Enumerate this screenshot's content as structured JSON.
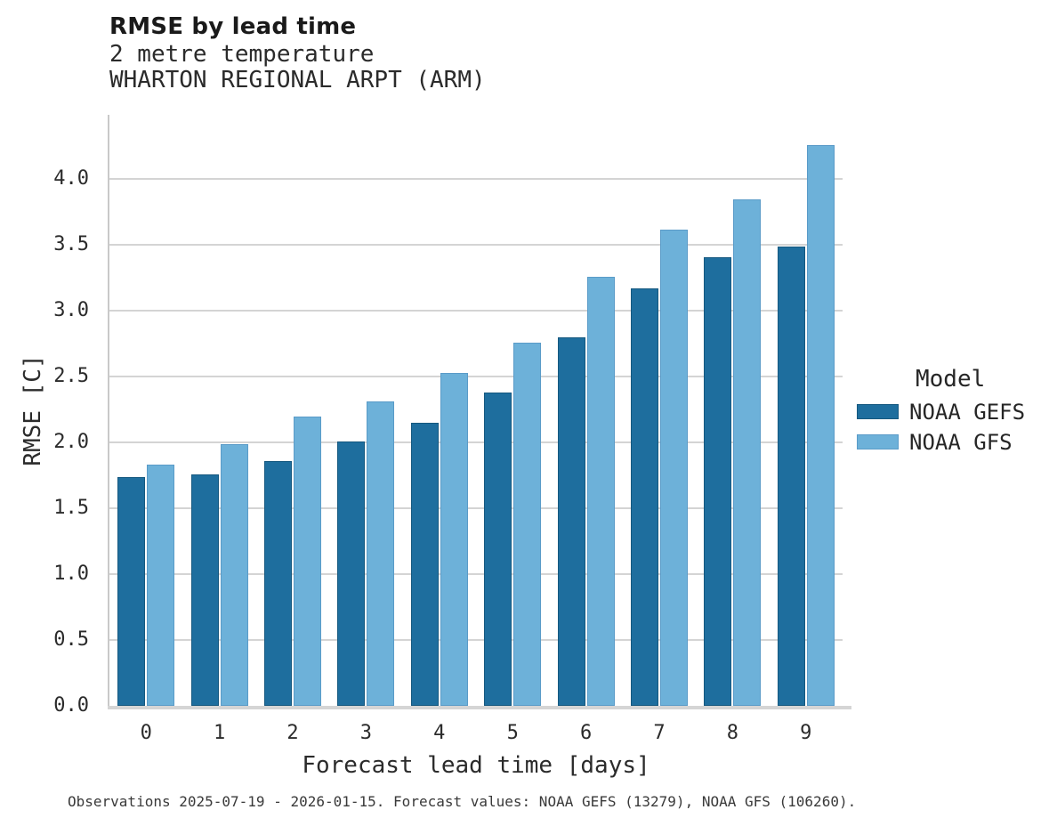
{
  "header": {
    "title": "RMSE by lead time",
    "subtitle_variable": "2 metre temperature",
    "subtitle_station": "WHARTON REGIONAL ARPT (ARM)"
  },
  "chart_data": {
    "type": "bar",
    "title": "RMSE by lead time",
    "subtitle": [
      "2 metre temperature",
      "WHARTON REGIONAL ARPT (ARM)"
    ],
    "categories": [
      "0",
      "1",
      "2",
      "3",
      "4",
      "5",
      "6",
      "7",
      "8",
      "9"
    ],
    "series": [
      {
        "name": "NOAA GEFS",
        "color": "#1e6e9e",
        "edge_color": "#15587f",
        "values": [
          1.74,
          1.76,
          1.86,
          2.01,
          2.15,
          2.38,
          2.8,
          3.17,
          3.41,
          3.49
        ]
      },
      {
        "name": "NOAA GFS",
        "color": "#6db1d9",
        "edge_color": "#5a9bc8",
        "values": [
          1.83,
          1.99,
          2.2,
          2.31,
          2.53,
          2.76,
          3.26,
          3.62,
          3.85,
          4.26
        ]
      }
    ],
    "xlabel": "Forecast lead time [days]",
    "ylabel": "RMSE [C]",
    "ylim": [
      0,
      4.49
    ],
    "yticks": [
      0,
      0.5,
      1,
      1.5,
      2,
      2.5,
      3,
      3.5,
      4
    ],
    "ytick_decimals": 1,
    "grid": true,
    "legend_title": "Model",
    "legend_position": "right-outside"
  },
  "footer": {
    "note": "Observations 2025-07-19 - 2026-01-15. Forecast values: NOAA GEFS (13279), NOAA GFS (106260)."
  },
  "colors": {
    "background": "#ffffff",
    "grid": "#d4d4d4",
    "axis": "#c9c9c9",
    "text": "#2b2b2b",
    "title": "#1a1a1a"
  }
}
